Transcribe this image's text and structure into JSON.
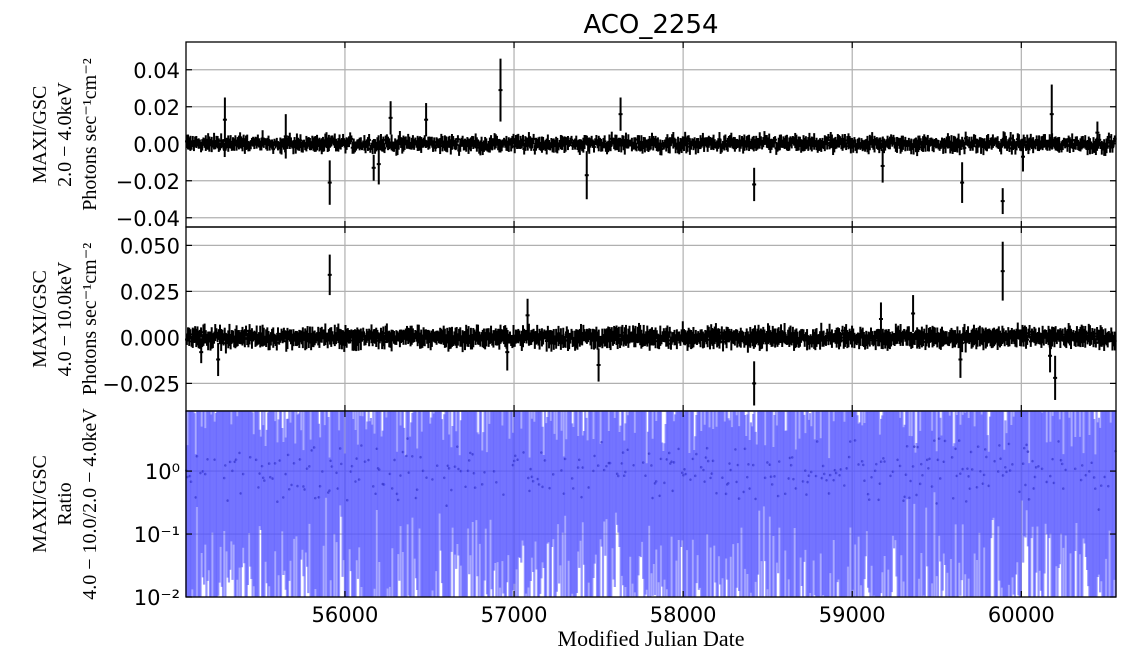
{
  "figure": {
    "title": "ACO_2254",
    "xlabel": "Modified Julian Date",
    "xlim": [
      55060,
      60560
    ],
    "xticks": [
      {
        "value": 56000,
        "label": "56000"
      },
      {
        "value": 57000,
        "label": "57000"
      },
      {
        "value": 58000,
        "label": "58000"
      },
      {
        "value": 59000,
        "label": "59000"
      },
      {
        "value": 60000,
        "label": "60000"
      }
    ]
  },
  "chart_data": [
    {
      "type": "scatter",
      "panel": "top",
      "ylabel_lines": [
        "MAXI/GSC",
        "2.0 − 4.0keV",
        "Photons sec⁻¹cm⁻²"
      ],
      "ylim": [
        -0.045,
        0.055
      ],
      "yticks": [
        {
          "value": 0.04,
          "label": "0.04"
        },
        {
          "value": 0.02,
          "label": "0.02"
        },
        {
          "value": 0.0,
          "label": "0.00"
        },
        {
          "value": -0.02,
          "label": "−0.02"
        },
        {
          "value": -0.04,
          "label": "−0.04"
        }
      ],
      "grid": true,
      "color": "#000000",
      "bin_days": 7,
      "typical_error": 0.003,
      "typical_scatter": 0.003,
      "points": [
        {
          "x": 55290,
          "y": 0.013,
          "err": 0.012
        },
        {
          "x": 55650,
          "y": 0.004,
          "err": 0.012
        },
        {
          "x": 55910,
          "y": -0.021,
          "err": 0.012
        },
        {
          "x": 56170,
          "y": -0.013,
          "err": 0.007
        },
        {
          "x": 56200,
          "y": -0.011,
          "err": 0.011
        },
        {
          "x": 56270,
          "y": 0.014,
          "err": 0.009
        },
        {
          "x": 56480,
          "y": 0.013,
          "err": 0.009
        },
        {
          "x": 56920,
          "y": 0.029,
          "err": 0.017
        },
        {
          "x": 57430,
          "y": -0.017,
          "err": 0.013
        },
        {
          "x": 57630,
          "y": 0.016,
          "err": 0.009
        },
        {
          "x": 58420,
          "y": -0.022,
          "err": 0.009
        },
        {
          "x": 59180,
          "y": -0.012,
          "err": 0.009
        },
        {
          "x": 59650,
          "y": -0.021,
          "err": 0.011
        },
        {
          "x": 59890,
          "y": -0.031,
          "err": 0.007
        },
        {
          "x": 60010,
          "y": -0.007,
          "err": 0.008
        },
        {
          "x": 60180,
          "y": 0.016,
          "err": 0.016
        },
        {
          "x": 60450,
          "y": 0.006,
          "err": 0.006
        }
      ]
    },
    {
      "type": "scatter",
      "panel": "middle",
      "ylabel_lines": [
        "MAXI/GSC",
        "4.0 − 10.0keV",
        "Photons sec⁻¹cm⁻²"
      ],
      "ylim": [
        -0.04,
        0.06
      ],
      "yticks": [
        {
          "value": 0.05,
          "label": "0.050"
        },
        {
          "value": 0.025,
          "label": "0.025"
        },
        {
          "value": 0.0,
          "label": "0.000"
        },
        {
          "value": -0.025,
          "label": "−0.025"
        }
      ],
      "grid": true,
      "color": "#000000",
      "bin_days": 7,
      "typical_error": 0.004,
      "typical_scatter": 0.003,
      "points": [
        {
          "x": 55150,
          "y": -0.008,
          "err": 0.006
        },
        {
          "x": 55250,
          "y": -0.012,
          "err": 0.009
        },
        {
          "x": 55910,
          "y": 0.034,
          "err": 0.011
        },
        {
          "x": 56960,
          "y": -0.008,
          "err": 0.01
        },
        {
          "x": 57080,
          "y": 0.012,
          "err": 0.009
        },
        {
          "x": 57500,
          "y": -0.015,
          "err": 0.009
        },
        {
          "x": 58420,
          "y": -0.025,
          "err": 0.012
        },
        {
          "x": 59170,
          "y": 0.01,
          "err": 0.009
        },
        {
          "x": 59360,
          "y": 0.013,
          "err": 0.01
        },
        {
          "x": 59640,
          "y": -0.012,
          "err": 0.01
        },
        {
          "x": 59890,
          "y": 0.036,
          "err": 0.016
        },
        {
          "x": 60200,
          "y": -0.022,
          "err": 0.012
        },
        {
          "x": 60170,
          "y": -0.01,
          "err": 0.009
        }
      ]
    },
    {
      "type": "scatter",
      "panel": "bottom",
      "ylabel_lines": [
        "MAXI/GSC",
        "Ratio",
        "4.0 − 10.0/2.0 − 4.0keV"
      ],
      "yscale": "log",
      "ylim": [
        0.01,
        9
      ],
      "yticks": [
        {
          "value": 1,
          "label": "10⁰"
        },
        {
          "value": 0.1,
          "label": "10⁻¹"
        },
        {
          "value": 0.01,
          "label": "10⁻²"
        }
      ],
      "grid": true,
      "color": "#5050ff",
      "bin_days": 7,
      "typical_ratio": 1.0,
      "typical_error_factor": "error bars span most of the range"
    }
  ]
}
